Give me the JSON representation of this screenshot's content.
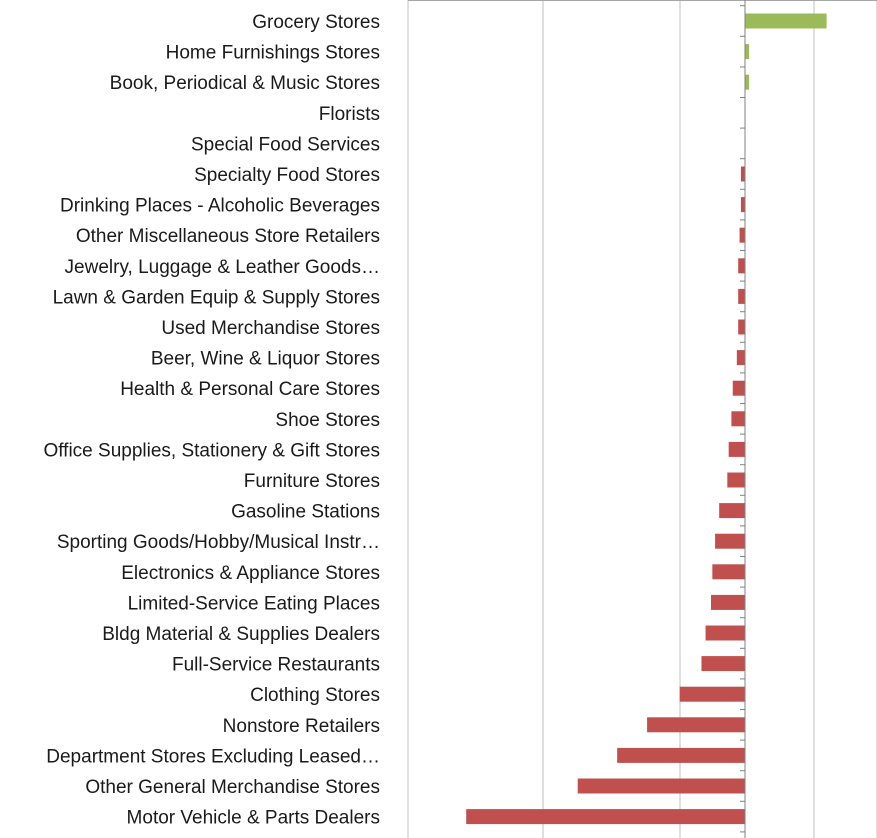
{
  "chart_data": {
    "type": "bar",
    "orientation": "horizontal",
    "title": "",
    "xlabel": "",
    "ylabel": "",
    "grid": true,
    "xlim": [
      -2.05,
      1.0
    ],
    "categories": [
      "Grocery Stores",
      "Home Furnishings Stores",
      "Book, Periodical & Music Stores",
      "Florists",
      "Special Food Services",
      "Specialty Food Stores",
      "Drinking Places - Alcoholic Beverages",
      "Other Miscellaneous Store Retailers",
      "Jewelry, Luggage & Leather Goods…",
      "Lawn & Garden Equip & Supply Stores",
      "Used Merchandise Stores",
      "Beer, Wine & Liquor Stores",
      "Health & Personal Care Stores",
      "Shoe Stores",
      "Office Supplies, Stationery & Gift Stores",
      "Furniture Stores",
      "Gasoline Stations",
      "Sporting Goods/Hobby/Musical Instr…",
      "Electronics & Appliance Stores",
      "Limited-Service Eating Places",
      "Bldg Material & Supplies Dealers",
      "Full-Service Restaurants",
      "Clothing Stores",
      "Nonstore Retailers",
      "Department Stores Excluding Leased…",
      "Other General Merchandise Stores",
      "Motor Vehicle & Parts Dealers"
    ],
    "values": [
      0.6,
      0.03,
      0.03,
      0.0,
      0.0,
      -0.03,
      -0.03,
      -0.04,
      -0.05,
      -0.05,
      -0.05,
      -0.06,
      -0.09,
      -0.1,
      -0.12,
      -0.13,
      -0.19,
      -0.22,
      -0.24,
      -0.25,
      -0.29,
      -0.32,
      -0.48,
      -0.72,
      -0.94,
      -1.23,
      -2.05
    ],
    "colors": {
      "positive": "#9bbb59",
      "negative": "#c0504d"
    }
  }
}
